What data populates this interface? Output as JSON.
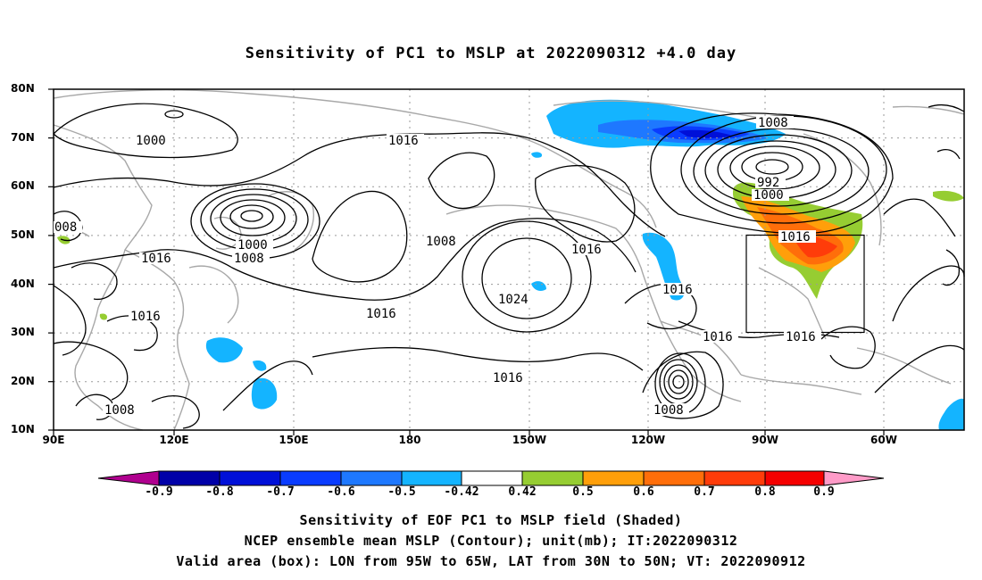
{
  "title": "Sensitivity of PC1 to MSLP at 2022090312 +4.0 day",
  "lat_labels": [
    "80N",
    "70N",
    "60N",
    "50N",
    "40N",
    "30N",
    "20N",
    "10N"
  ],
  "lon_labels": [
    "90E",
    "120E",
    "150E",
    "180",
    "150W",
    "120W",
    "90W",
    "60W"
  ],
  "contour_labels": [
    {
      "text": "1000",
      "color": "black"
    },
    {
      "text": "1016",
      "color": "black"
    },
    {
      "text": "1008",
      "color": "black"
    },
    {
      "text": "992",
      "color": "black"
    },
    {
      "text": "1000",
      "color": "black"
    },
    {
      "text": "008",
      "color": "black"
    },
    {
      "text": "1000",
      "color": "black"
    },
    {
      "text": "1008",
      "color": "black"
    },
    {
      "text": "1016",
      "color": "black"
    },
    {
      "text": "1016",
      "color": "black"
    },
    {
      "text": "1008",
      "color": "black"
    },
    {
      "text": "1016",
      "color": "black"
    },
    {
      "text": "1024",
      "color": "black"
    },
    {
      "text": "1016",
      "color": "black"
    },
    {
      "text": "1016",
      "color": "black"
    },
    {
      "text": "1016",
      "color": "black"
    },
    {
      "text": "1016",
      "color": "black"
    },
    {
      "text": "1016",
      "color": "black"
    },
    {
      "text": "1016",
      "color": "black"
    },
    {
      "text": "1008",
      "color": "black"
    },
    {
      "text": "1008",
      "color": "black"
    }
  ],
  "colorbar": {
    "labels": [
      "-0.9",
      "-0.8",
      "-0.7",
      "-0.6",
      "-0.5",
      "-0.42",
      "0.42",
      "0.5",
      "0.6",
      "0.7",
      "0.8",
      "0.9"
    ],
    "colors": [
      "#b0008f",
      "#0000a8",
      "#0010d8",
      "#0a3cff",
      "#1e78ff",
      "#14b4ff",
      "#00d2ff",
      "#ffffff",
      "#96cd32",
      "#ff9f0a",
      "#ff6e0a",
      "#ff3c0a",
      "#f50000",
      "#ff9bc8"
    ]
  },
  "captions": {
    "line1": "Sensitivity of EOF PC1 to MSLP field (Shaded)",
    "line2": "NCEP ensemble mean MSLP (Contour); unit(mb); IT:2022090312",
    "line3": "Valid area (box): LON from 95W to 65W, LAT from 30N to 50N; VT: 2022090912"
  }
}
